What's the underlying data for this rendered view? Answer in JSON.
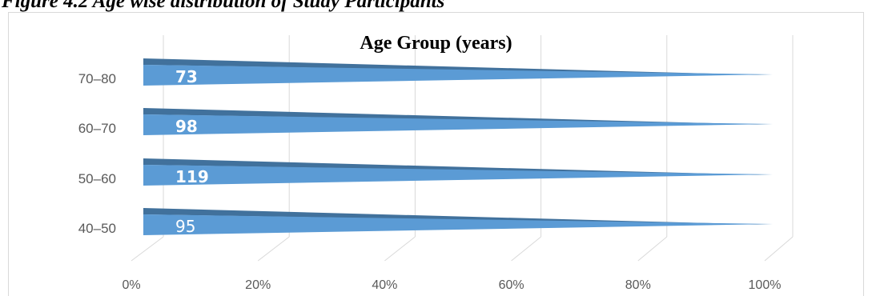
{
  "figure_caption": "Figure 4.2 Age wise distribution of Study Participants",
  "chart_data": {
    "type": "bar",
    "orientation": "horizontal",
    "title": "Age Group (years)",
    "categories": [
      "40–50",
      "50–60",
      "60–70",
      "70–80"
    ],
    "values": [
      95,
      119,
      98,
      73
    ],
    "data_labels": [
      "95",
      "119",
      "98",
      "73"
    ],
    "x_ticks": [
      "0%",
      "20%",
      "40%",
      "60%",
      "80%",
      "100%"
    ],
    "xlim": [
      0,
      100
    ],
    "stacked_percent": true,
    "grid": true,
    "legend": "none",
    "colors": {
      "bar_front": "#5b9bd5",
      "bar_top": "#41719c",
      "grid": "#d9d9d9",
      "label": "#ffffff",
      "tick": "#595959"
    }
  }
}
